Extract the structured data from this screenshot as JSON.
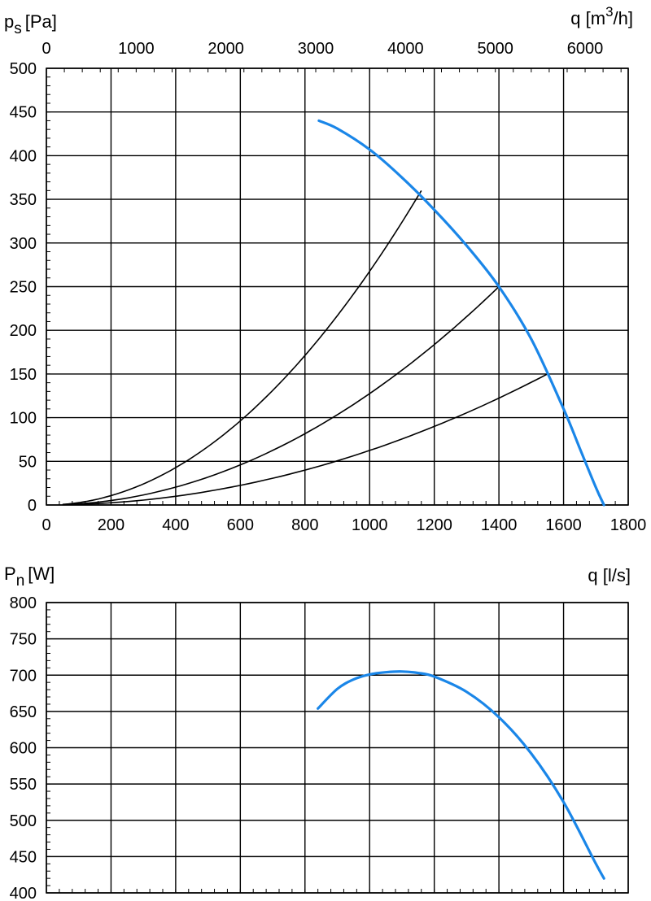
{
  "chart_data": [
    {
      "type": "line",
      "ylabel": {
        "main": "p",
        "sub": "s",
        "unit": "[Pa]"
      },
      "top_axis_label": {
        "pre": "q [m",
        "sup": "3",
        "post": "/h]"
      },
      "xlim": [
        0,
        1800
      ],
      "ylim": [
        0,
        500
      ],
      "x_ticks": [
        0,
        200,
        400,
        600,
        800,
        1000,
        1200,
        1400,
        1600,
        1800
      ],
      "y_ticks": [
        0,
        50,
        100,
        150,
        200,
        250,
        300,
        350,
        400,
        450,
        500
      ],
      "top_axis_ticks": [
        0,
        1000,
        2000,
        3000,
        4000,
        5000,
        6000
      ],
      "grid": true,
      "fan_curve": {
        "color": "#1a86e8",
        "x": [
          843,
          900,
          1000,
          1100,
          1200,
          1300,
          1400,
          1500,
          1600,
          1650,
          1700,
          1725
        ],
        "y": [
          440,
          431,
          407,
          375,
          338,
          297,
          250,
          190,
          110,
          65,
          20,
          0
        ]
      },
      "system_curves": [
        {
          "x_end": 1160,
          "y_end": 360
        },
        {
          "x_end": 1400,
          "y_end": 250
        },
        {
          "x_end": 1550,
          "y_end": 150
        }
      ]
    },
    {
      "type": "line",
      "ylabel": {
        "main": "P",
        "sub": "n",
        "unit": "[W]"
      },
      "xlabel": "q [l/s]",
      "xlim": [
        0,
        1800
      ],
      "ylim": [
        400,
        800
      ],
      "y_ticks": [
        400,
        450,
        500,
        550,
        600,
        650,
        700,
        750,
        800
      ],
      "grid": true,
      "power_curve": {
        "color": "#1a86e8",
        "x": [
          840,
          900,
          950,
          1000,
          1050,
          1100,
          1150,
          1200,
          1300,
          1400,
          1500,
          1600,
          1700,
          1725
        ],
        "y": [
          654,
          681,
          694,
          701,
          704,
          705,
          703,
          698,
          677,
          642,
          592,
          525,
          440,
          420
        ]
      }
    }
  ]
}
